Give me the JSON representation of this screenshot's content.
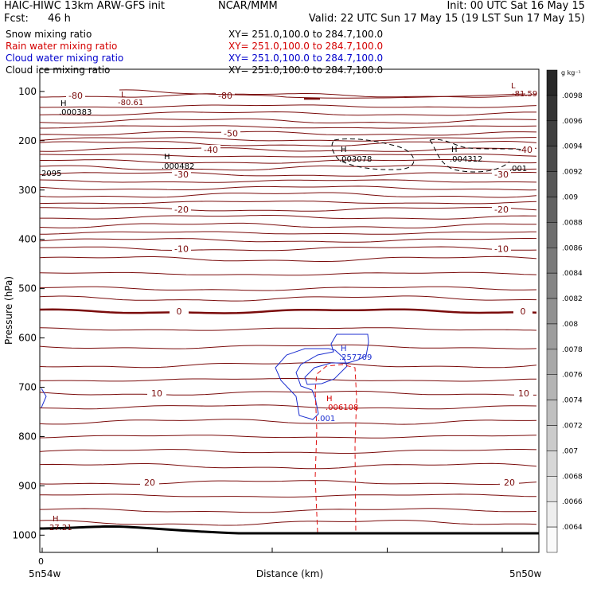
{
  "header": {
    "title_left": "HAIC-HIWC 13km ARW-GFS init",
    "org": "NCAR/MMM",
    "init": "Init: 00 UTC Sat 16 May 15",
    "fcst_label": "Fcst:",
    "fcst_value": "46 h",
    "valid": "Valid: 22 UTC Sun 17 May 15 (19 LST Sun 17 May 15)"
  },
  "legend": [
    {
      "name": "Snow mixing ratio",
      "xy": "XY= 251.0,100.0 to 284.7,100.0",
      "color": "#000000"
    },
    {
      "name": "Rain water mixing ratio",
      "xy": "XY= 251.0,100.0 to 284.7,100.0",
      "color": "#d40000"
    },
    {
      "name": "Cloud water mixing ratio",
      "xy": "XY= 251.0,100.0 to 284.7,100.0",
      "color": "#0000cc"
    },
    {
      "name": "Cloud ice mixing ratio",
      "xy": "XY= 251.0,100.0 to 284.7,100.0",
      "color": "#000000"
    }
  ],
  "colors": {
    "temperature": "#7a0b0b",
    "rain": "#e01010",
    "cloud_water": "#1c2fd0",
    "snow": "#000000",
    "terrain": "#000000"
  },
  "chart_data": {
    "type": "line",
    "ylabel": "Pressure (hPa)",
    "xlabel": "Distance (km)",
    "y_ticks": [
      100,
      200,
      300,
      400,
      500,
      600,
      700,
      800,
      900,
      1000
    ],
    "ylim": [
      1035,
      55
    ],
    "x_tick_labels": {
      "left_top": "0",
      "left": "5n54w",
      "right": "5n50w"
    },
    "temperature_contours": [
      {
        "value": -80,
        "label": "-80",
        "p": 108
      },
      {
        "value": -50,
        "label": "-50",
        "p": 185
      },
      {
        "value": -40,
        "label": "-40",
        "p": 218
      },
      {
        "value": -30,
        "label": "-30",
        "p": 268
      },
      {
        "value": -20,
        "label": "-20",
        "p": 339
      },
      {
        "value": -10,
        "label": "-10",
        "p": 419
      },
      {
        "value": 0,
        "label": "0",
        "p": 546
      },
      {
        "value": 10,
        "label": "10",
        "p": 712
      },
      {
        "value": 20,
        "label": "20",
        "p": 893
      }
    ],
    "extrema_labels": [
      {
        "kind": "H",
        "value": ".000383",
        "color": "#000000"
      },
      {
        "kind": "L",
        "value": "-80.61",
        "color": "#7a0b0b"
      },
      {
        "kind": "L",
        "value": "-81.59",
        "color": "#7a0b0b"
      },
      {
        "kind": "H",
        "value": ".000482",
        "color": "#000000"
      },
      {
        "kind": "H",
        "value": ".003078",
        "color": "#000000"
      },
      {
        "kind": "H",
        "value": ".004312",
        "color": "#000000"
      },
      {
        "kind": "",
        "value": ".001",
        "color": "#000000"
      },
      {
        "kind": "",
        "value": "2095",
        "color": "#000000"
      },
      {
        "kind": "H",
        "value": ".257709",
        "color": "#1c2fd0"
      },
      {
        "kind": "H",
        "value": ".006108",
        "color": "#d40000"
      },
      {
        "kind": "",
        "value": ".001",
        "color": "#1c2fd0"
      },
      {
        "kind": "H",
        "value": "27.21",
        "color": "#7a0b0b"
      }
    ]
  },
  "colorbar": {
    "unit": "g kg⁻¹",
    "ticks": [
      ".0098",
      ".0096",
      ".0094",
      ".0092",
      ".009",
      ".0088",
      ".0086",
      ".0084",
      ".0082",
      ".008",
      ".0078",
      ".0076",
      ".0074",
      ".0072",
      ".007",
      ".0068",
      ".0066",
      ".0064"
    ]
  }
}
